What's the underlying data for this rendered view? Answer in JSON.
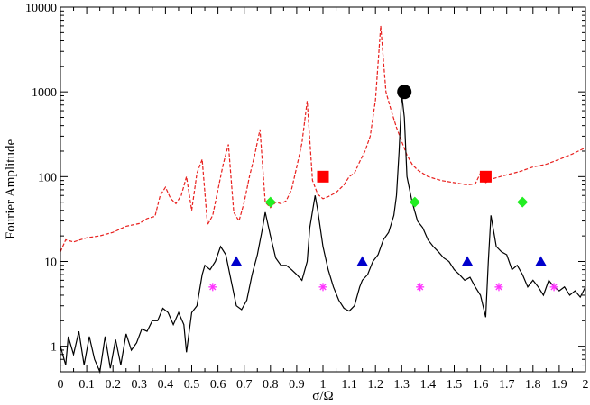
{
  "chart_data": {
    "type": "line",
    "xlabel": "σ/Ω",
    "ylabel": "Fourier Amplitude",
    "xlim": [
      0,
      2
    ],
    "ylim": [
      0.5,
      10000
    ],
    "yscale": "log",
    "grid": false,
    "x_ticks": [
      "0",
      "0.1",
      "0.2",
      "0.3",
      "0.4",
      "0.5",
      "0.6",
      "0.7",
      "0.8",
      "0.9",
      "1",
      "1.1",
      "1.2",
      "1.3",
      "1.4",
      "1.5",
      "1.6",
      "1.7",
      "1.8",
      "1.9",
      "2"
    ],
    "y_ticks": [
      "1",
      "10",
      "100",
      "1000",
      "10000"
    ],
    "colors": {
      "dashed": "#e8201e",
      "solid": "#000000",
      "square": "#ff0000",
      "diamond": "#22ee22",
      "triangle": "#0000cc",
      "star": "#ff33ff"
    },
    "series": [
      {
        "style": "dashed",
        "points": [
          [
            0.0,
            13
          ],
          [
            0.02,
            18
          ],
          [
            0.05,
            17
          ],
          [
            0.1,
            19
          ],
          [
            0.15,
            20
          ],
          [
            0.2,
            22
          ],
          [
            0.25,
            26
          ],
          [
            0.3,
            28
          ],
          [
            0.33,
            32
          ],
          [
            0.36,
            34
          ],
          [
            0.38,
            60
          ],
          [
            0.4,
            75
          ],
          [
            0.42,
            55
          ],
          [
            0.44,
            48
          ],
          [
            0.46,
            60
          ],
          [
            0.48,
            100
          ],
          [
            0.5,
            40
          ],
          [
            0.52,
            110
          ],
          [
            0.54,
            160
          ],
          [
            0.56,
            27
          ],
          [
            0.58,
            35
          ],
          [
            0.6,
            70
          ],
          [
            0.62,
            140
          ],
          [
            0.64,
            240
          ],
          [
            0.66,
            38
          ],
          [
            0.68,
            30
          ],
          [
            0.7,
            50
          ],
          [
            0.72,
            100
          ],
          [
            0.74,
            180
          ],
          [
            0.76,
            360
          ],
          [
            0.78,
            50
          ],
          [
            0.8,
            43
          ],
          [
            0.82,
            50
          ],
          [
            0.84,
            48
          ],
          [
            0.86,
            52
          ],
          [
            0.88,
            70
          ],
          [
            0.9,
            130
          ],
          [
            0.92,
            250
          ],
          [
            0.94,
            780
          ],
          [
            0.96,
            90
          ],
          [
            0.98,
            62
          ],
          [
            1.0,
            55
          ],
          [
            1.02,
            58
          ],
          [
            1.05,
            65
          ],
          [
            1.08,
            80
          ],
          [
            1.1,
            100
          ],
          [
            1.12,
            110
          ],
          [
            1.14,
            150
          ],
          [
            1.16,
            200
          ],
          [
            1.18,
            300
          ],
          [
            1.2,
            800
          ],
          [
            1.22,
            6000
          ],
          [
            1.24,
            1000
          ],
          [
            1.26,
            600
          ],
          [
            1.28,
            380
          ],
          [
            1.3,
            260
          ],
          [
            1.32,
            180
          ],
          [
            1.34,
            140
          ],
          [
            1.36,
            120
          ],
          [
            1.4,
            100
          ],
          [
            1.45,
            90
          ],
          [
            1.5,
            85
          ],
          [
            1.55,
            80
          ],
          [
            1.58,
            82
          ],
          [
            1.6,
            110
          ],
          [
            1.62,
            85
          ],
          [
            1.65,
            95
          ],
          [
            1.7,
            105
          ],
          [
            1.75,
            115
          ],
          [
            1.8,
            130
          ],
          [
            1.85,
            140
          ],
          [
            1.9,
            160
          ],
          [
            1.95,
            185
          ],
          [
            2.0,
            220
          ]
        ]
      },
      {
        "style": "solid",
        "points": [
          [
            0.0,
            1.0
          ],
          [
            0.02,
            0.6
          ],
          [
            0.03,
            1.3
          ],
          [
            0.05,
            0.8
          ],
          [
            0.07,
            1.5
          ],
          [
            0.09,
            0.6
          ],
          [
            0.11,
            1.3
          ],
          [
            0.13,
            0.7
          ],
          [
            0.15,
            0.5
          ],
          [
            0.17,
            1.3
          ],
          [
            0.19,
            0.55
          ],
          [
            0.21,
            1.2
          ],
          [
            0.23,
            0.6
          ],
          [
            0.25,
            1.4
          ],
          [
            0.27,
            0.9
          ],
          [
            0.29,
            1.1
          ],
          [
            0.31,
            1.6
          ],
          [
            0.33,
            1.5
          ],
          [
            0.35,
            2.0
          ],
          [
            0.37,
            2.0
          ],
          [
            0.39,
            2.8
          ],
          [
            0.41,
            2.5
          ],
          [
            0.43,
            1.8
          ],
          [
            0.45,
            2.5
          ],
          [
            0.47,
            1.8
          ],
          [
            0.48,
            0.85
          ],
          [
            0.5,
            2.5
          ],
          [
            0.52,
            3.0
          ],
          [
            0.54,
            7
          ],
          [
            0.55,
            9
          ],
          [
            0.57,
            8
          ],
          [
            0.59,
            10
          ],
          [
            0.61,
            15
          ],
          [
            0.63,
            12
          ],
          [
            0.65,
            6
          ],
          [
            0.67,
            3.0
          ],
          [
            0.69,
            2.7
          ],
          [
            0.71,
            3.5
          ],
          [
            0.73,
            7
          ],
          [
            0.75,
            12
          ],
          [
            0.77,
            25
          ],
          [
            0.78,
            38
          ],
          [
            0.8,
            20
          ],
          [
            0.82,
            11
          ],
          [
            0.84,
            9
          ],
          [
            0.86,
            9
          ],
          [
            0.88,
            8
          ],
          [
            0.9,
            7
          ],
          [
            0.92,
            6
          ],
          [
            0.94,
            10
          ],
          [
            0.95,
            25
          ],
          [
            0.97,
            60
          ],
          [
            0.98,
            40
          ],
          [
            1.0,
            15
          ],
          [
            1.02,
            8
          ],
          [
            1.04,
            5
          ],
          [
            1.06,
            3.5
          ],
          [
            1.08,
            2.8
          ],
          [
            1.1,
            2.6
          ],
          [
            1.12,
            3.0
          ],
          [
            1.14,
            5
          ],
          [
            1.15,
            6
          ],
          [
            1.17,
            7
          ],
          [
            1.19,
            10
          ],
          [
            1.21,
            12
          ],
          [
            1.23,
            18
          ],
          [
            1.25,
            22
          ],
          [
            1.27,
            35
          ],
          [
            1.28,
            60
          ],
          [
            1.29,
            200
          ],
          [
            1.3,
            950
          ],
          [
            1.31,
            500
          ],
          [
            1.32,
            100
          ],
          [
            1.34,
            50
          ],
          [
            1.36,
            30
          ],
          [
            1.38,
            25
          ],
          [
            1.4,
            18
          ],
          [
            1.42,
            15
          ],
          [
            1.44,
            13
          ],
          [
            1.46,
            11
          ],
          [
            1.48,
            10
          ],
          [
            1.5,
            8
          ],
          [
            1.52,
            7
          ],
          [
            1.54,
            6
          ],
          [
            1.56,
            6.5
          ],
          [
            1.58,
            5
          ],
          [
            1.6,
            4.0
          ],
          [
            1.62,
            2.2
          ],
          [
            1.63,
            10
          ],
          [
            1.64,
            35
          ],
          [
            1.66,
            15
          ],
          [
            1.68,
            13
          ],
          [
            1.7,
            12
          ],
          [
            1.72,
            8
          ],
          [
            1.74,
            9
          ],
          [
            1.76,
            7
          ],
          [
            1.78,
            5
          ],
          [
            1.8,
            6
          ],
          [
            1.82,
            5
          ],
          [
            1.84,
            4
          ],
          [
            1.86,
            6
          ],
          [
            1.88,
            5
          ],
          [
            1.9,
            4.5
          ],
          [
            1.92,
            5
          ],
          [
            1.94,
            4
          ],
          [
            1.96,
            4.5
          ],
          [
            1.98,
            3.8
          ],
          [
            2.0,
            5
          ]
        ]
      }
    ],
    "markers": [
      {
        "shape": "circle",
        "color": "#000000",
        "points": [
          [
            1.31,
            1000
          ]
        ]
      },
      {
        "shape": "square",
        "color": "#ff0000",
        "points": [
          [
            1.0,
            100
          ],
          [
            1.62,
            100
          ]
        ]
      },
      {
        "shape": "diamond",
        "color": "#22ee22",
        "points": [
          [
            0.8,
            50
          ],
          [
            1.35,
            50
          ],
          [
            1.76,
            50
          ]
        ]
      },
      {
        "shape": "triangle",
        "color": "#0000cc",
        "points": [
          [
            0.67,
            10
          ],
          [
            1.15,
            10
          ],
          [
            1.55,
            10
          ],
          [
            1.83,
            10
          ]
        ]
      },
      {
        "shape": "star",
        "color": "#ff33ff",
        "points": [
          [
            0.58,
            5
          ],
          [
            1.0,
            5
          ],
          [
            1.37,
            5
          ],
          [
            1.67,
            5
          ],
          [
            1.88,
            5
          ]
        ]
      }
    ]
  }
}
